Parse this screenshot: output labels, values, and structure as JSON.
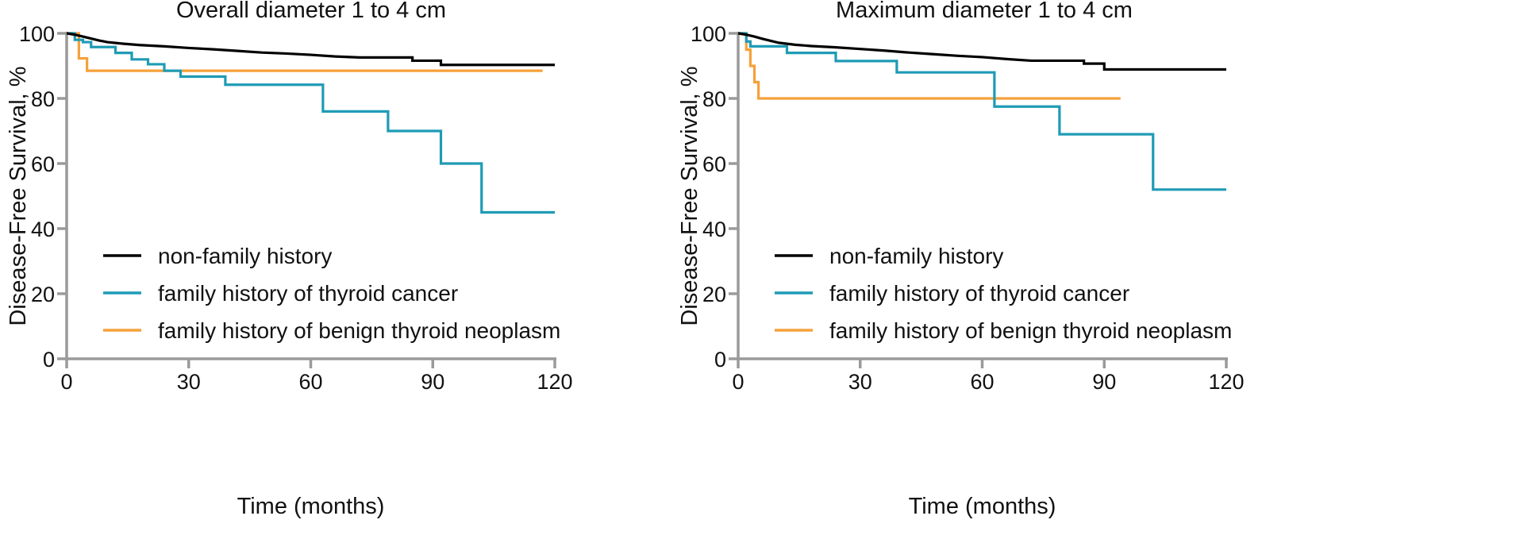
{
  "chart_data": [
    {
      "type": "line",
      "step": true,
      "title": "Overall diameter 1 to 4 cm",
      "xlabel": "Time (months)",
      "ylabel": "Disease-Free Survival, %",
      "xlim": [
        0,
        120
      ],
      "ylim": [
        0,
        100
      ],
      "xticks": [
        0,
        30,
        60,
        90,
        120
      ],
      "yticks": [
        0,
        20,
        40,
        60,
        80,
        100
      ],
      "legend_position": "bottom-left",
      "series": [
        {
          "name": "non-family history",
          "color": "#000000",
          "points": [
            [
              0,
              100
            ],
            [
              2,
              99.6
            ],
            [
              4,
              99
            ],
            [
              6,
              98.4
            ],
            [
              8,
              97.8
            ],
            [
              10,
              97.3
            ],
            [
              14,
              96.8
            ],
            [
              18,
              96.4
            ],
            [
              24,
              96
            ],
            [
              30,
              95.5
            ],
            [
              36,
              95.1
            ],
            [
              42,
              94.6
            ],
            [
              48,
              94.1
            ],
            [
              54,
              93.8
            ],
            [
              60,
              93.4
            ],
            [
              66,
              92.9
            ],
            [
              72,
              92.6
            ],
            [
              85,
              92.6
            ],
            [
              85,
              91.6
            ],
            [
              92,
              91.6
            ],
            [
              92,
              90.3
            ],
            [
              120,
              90.3
            ]
          ]
        },
        {
          "name": "family history of thyroid cancer",
          "color": "#1f9bb5",
          "points": [
            [
              0,
              100
            ],
            [
              2,
              100
            ],
            [
              2,
              98
            ],
            [
              4,
              98
            ],
            [
              4,
              97.3
            ],
            [
              6,
              97.3
            ],
            [
              6,
              95.8
            ],
            [
              12,
              95.8
            ],
            [
              12,
              94
            ],
            [
              16,
              94
            ],
            [
              16,
              92
            ],
            [
              20,
              92
            ],
            [
              20,
              90.5
            ],
            [
              24,
              90.5
            ],
            [
              24,
              88.5
            ],
            [
              28,
              88.5
            ],
            [
              28,
              86.7
            ],
            [
              39,
              86.7
            ],
            [
              39,
              84.2
            ],
            [
              63,
              84.2
            ],
            [
              63,
              76
            ],
            [
              79,
              76
            ],
            [
              79,
              70
            ],
            [
              92,
              70
            ],
            [
              92,
              60
            ],
            [
              102,
              60
            ],
            [
              102,
              45
            ],
            [
              120,
              45
            ]
          ]
        },
        {
          "name": "family history of benign thyroid neoplasm",
          "color": "#f5a13a",
          "points": [
            [
              0,
              100
            ],
            [
              3,
              100
            ],
            [
              3,
              92.3
            ],
            [
              5,
              92.3
            ],
            [
              5,
              88.5
            ],
            [
              117,
              88.5
            ]
          ]
        }
      ]
    },
    {
      "type": "line",
      "step": true,
      "title": "Maximum diameter 1 to 4 cm",
      "xlabel": "Time (months)",
      "ylabel": "Disease-Free Survival, %",
      "xlim": [
        0,
        120
      ],
      "ylim": [
        0,
        100
      ],
      "xticks": [
        0,
        30,
        60,
        90,
        120
      ],
      "yticks": [
        0,
        20,
        40,
        60,
        80,
        100
      ],
      "legend_position": "bottom-left",
      "series": [
        {
          "name": "non-family history",
          "color": "#000000",
          "points": [
            [
              0,
              100
            ],
            [
              2,
              99.6
            ],
            [
              4,
              99
            ],
            [
              6,
              98.3
            ],
            [
              8,
              97.7
            ],
            [
              10,
              97.1
            ],
            [
              14,
              96.5
            ],
            [
              18,
              96.1
            ],
            [
              24,
              95.7
            ],
            [
              30,
              95.2
            ],
            [
              36,
              94.7
            ],
            [
              42,
              94.1
            ],
            [
              48,
              93.6
            ],
            [
              54,
              93.1
            ],
            [
              60,
              92.7
            ],
            [
              66,
              92.1
            ],
            [
              72,
              91.6
            ],
            [
              85,
              91.6
            ],
            [
              85,
              90.7
            ],
            [
              90,
              90.7
            ],
            [
              90,
              88.9
            ],
            [
              120,
              88.9
            ]
          ]
        },
        {
          "name": "family history of thyroid cancer",
          "color": "#1f9bb5",
          "points": [
            [
              0,
              100
            ],
            [
              2,
              100
            ],
            [
              2,
              97.5
            ],
            [
              3,
              97.5
            ],
            [
              3,
              96
            ],
            [
              12,
              96
            ],
            [
              12,
              94
            ],
            [
              24,
              94
            ],
            [
              24,
              91.5
            ],
            [
              39,
              91.5
            ],
            [
              39,
              88
            ],
            [
              63,
              88
            ],
            [
              63,
              77.5
            ],
            [
              79,
              77.5
            ],
            [
              79,
              69
            ],
            [
              102,
              69
            ],
            [
              102,
              52
            ],
            [
              120,
              52
            ]
          ]
        },
        {
          "name": "family history of benign thyroid neoplasm",
          "color": "#f5a13a",
          "points": [
            [
              0,
              100
            ],
            [
              2,
              100
            ],
            [
              2,
              95
            ],
            [
              3,
              95
            ],
            [
              3,
              90
            ],
            [
              4,
              90
            ],
            [
              4,
              85
            ],
            [
              5,
              85
            ],
            [
              5,
              80
            ],
            [
              94,
              80
            ]
          ]
        }
      ]
    }
  ]
}
